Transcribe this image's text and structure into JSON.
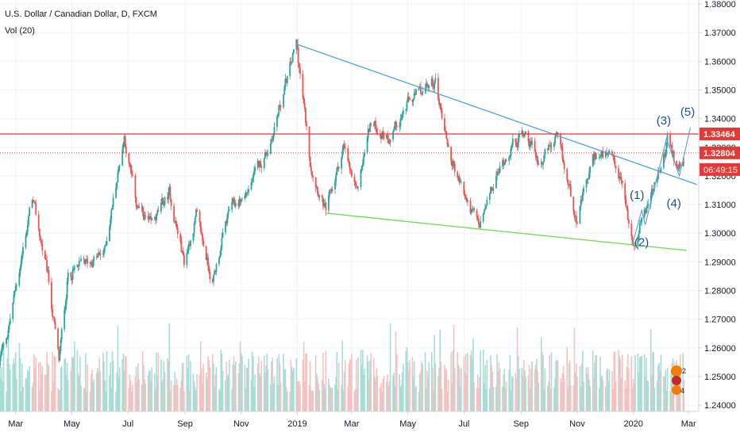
{
  "legend": {
    "title": "U.S. Dollar / Canadian Dollar, D, FXCM",
    "volume": "Vol (20)"
  },
  "chart_data": {
    "type": "candlestick",
    "symbol": "U.S. Dollar / Canadian Dollar",
    "interval": "D",
    "source": "FXCM",
    "ylim": [
      1.233,
      1.381
    ],
    "y_ticks": [
      "1.38000",
      "1.37000",
      "1.36000",
      "1.35000",
      "1.34000",
      "1.33000",
      "1.32000",
      "1.31000",
      "1.30000",
      "1.29000",
      "1.28000",
      "1.27000",
      "1.26000",
      "1.25000",
      "1.24000"
    ],
    "x_ticks": [
      {
        "label": "Mar",
        "date": "2018-03-01"
      },
      {
        "label": "May",
        "date": "2018-05-01"
      },
      {
        "label": "Jul",
        "date": "2018-07-01"
      },
      {
        "label": "Sep",
        "date": "2018-09-01"
      },
      {
        "label": "Nov",
        "date": "2018-11-01"
      },
      {
        "label": "2019",
        "date": "2019-01-01"
      },
      {
        "label": "Mar",
        "date": "2019-03-01"
      },
      {
        "label": "May",
        "date": "2019-05-01"
      },
      {
        "label": "Jul",
        "date": "2019-07-01"
      },
      {
        "label": "Sep",
        "date": "2019-09-01"
      },
      {
        "label": "Nov",
        "date": "2019-11-01"
      },
      {
        "label": "2020",
        "date": "2020-01-01"
      },
      {
        "label": "Mar",
        "date": "2020-03-01"
      }
    ],
    "price_path": [
      [
        "2018-02-01",
        1.245
      ],
      [
        "2018-02-20",
        1.265
      ],
      [
        "2018-03-19",
        1.312
      ],
      [
        "2018-04-05",
        1.285
      ],
      [
        "2018-04-17",
        1.255
      ],
      [
        "2018-04-27",
        1.286
      ],
      [
        "2018-05-21",
        1.29
      ],
      [
        "2018-06-05",
        1.293
      ],
      [
        "2018-06-27",
        1.334
      ],
      [
        "2018-07-10",
        1.31
      ],
      [
        "2018-07-26",
        1.302
      ],
      [
        "2018-08-15",
        1.314
      ],
      [
        "2018-08-31",
        1.29
      ],
      [
        "2018-09-13",
        1.306
      ],
      [
        "2018-10-01",
        1.283
      ],
      [
        "2018-10-19",
        1.308
      ],
      [
        "2018-11-05",
        1.313
      ],
      [
        "2018-12-01",
        1.33
      ],
      [
        "2018-12-31",
        1.366
      ],
      [
        "2019-01-15",
        1.325
      ],
      [
        "2019-02-01",
        1.307
      ],
      [
        "2019-02-20",
        1.33
      ],
      [
        "2019-03-06",
        1.313
      ],
      [
        "2019-03-21",
        1.338
      ],
      [
        "2019-04-10",
        1.334
      ],
      [
        "2019-05-01",
        1.345
      ],
      [
        "2019-05-31",
        1.353
      ],
      [
        "2019-06-16",
        1.327
      ],
      [
        "2019-07-05",
        1.31
      ],
      [
        "2019-07-18",
        1.302
      ],
      [
        "2019-08-06",
        1.32
      ],
      [
        "2019-08-20",
        1.33
      ],
      [
        "2019-09-06",
        1.336
      ],
      [
        "2019-09-20",
        1.325
      ],
      [
        "2019-10-10",
        1.332
      ],
      [
        "2019-11-01",
        1.305
      ],
      [
        "2019-11-20",
        1.327
      ],
      [
        "2019-12-05",
        1.326
      ],
      [
        "2019-12-20",
        1.317
      ],
      [
        "2019-12-31",
        1.296
      ],
      [
        "2020-01-10",
        1.305
      ],
      [
        "2020-01-31",
        1.322
      ],
      [
        "2020-02-07",
        1.332
      ],
      [
        "2020-02-17",
        1.323
      ],
      [
        "2020-02-25",
        1.328
      ]
    ],
    "horizontal_lines": [
      {
        "price": 1.33464,
        "label": "1.33464",
        "style": "solid",
        "color": "#e53935"
      },
      {
        "price": 1.32804,
        "label": "1.32804",
        "style": "dotted",
        "color": "#e53935"
      }
    ],
    "countdown_label": "06:49:15",
    "trendlines": [
      {
        "from": [
          "2018-12-31",
          1.366
        ],
        "to": [
          "2020-03-10",
          1.317
        ],
        "color": "#4aa3df"
      },
      {
        "from": [
          "2019-02-01",
          1.307
        ],
        "to": [
          "2020-02-28",
          1.294
        ],
        "color": "#66dd44"
      }
    ],
    "wave_path": [
      [
        "2019-12-31",
        1.296
      ],
      [
        "2020-01-10",
        1.308
      ],
      [
        "2020-01-14",
        1.303
      ],
      [
        "2020-02-06",
        1.333
      ],
      [
        "2020-02-20",
        1.32
      ],
      [
        "2020-03-03",
        1.337
      ]
    ],
    "wave_labels": [
      {
        "text": "(1)",
        "date": "2020-01-05",
        "price": 1.312
      },
      {
        "text": "(2)",
        "date": "2020-01-10",
        "price": 1.2955
      },
      {
        "text": "(3)",
        "date": "2020-02-03",
        "price": 1.338
      },
      {
        "text": "(4)",
        "date": "2020-02-14",
        "price": 1.309
      },
      {
        "text": "(5)",
        "date": "2020-02-29",
        "price": 1.341
      }
    ],
    "volume_label": "Vol (20)",
    "event_badges": [
      "2",
      "4"
    ],
    "colors": {
      "up": "#26a69a",
      "down": "#ef5350",
      "wave": "#1e4f8c"
    }
  }
}
